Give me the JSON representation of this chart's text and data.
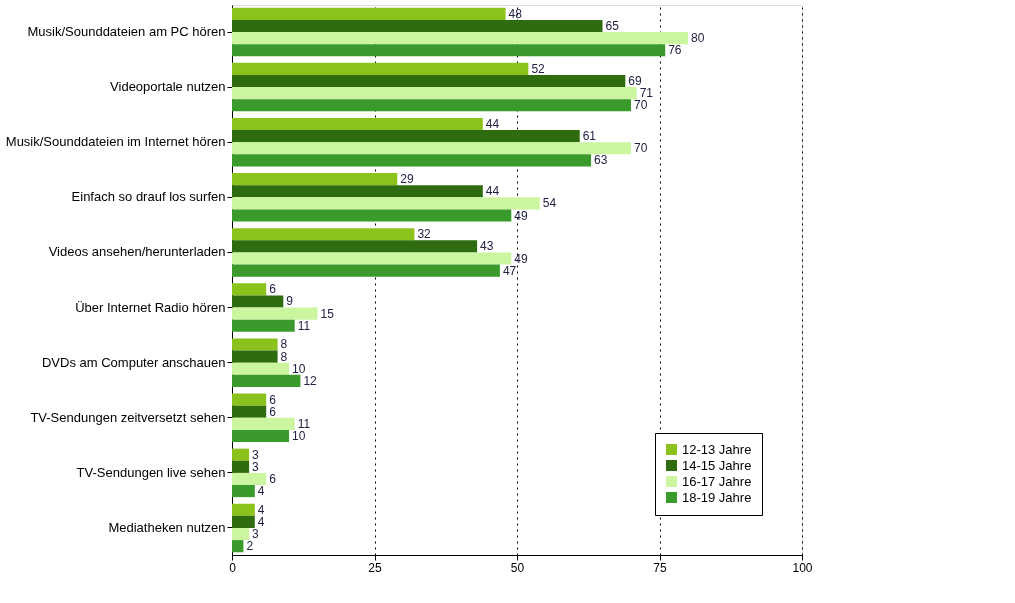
{
  "chart_data": {
    "type": "bar",
    "orientation": "horizontal",
    "categories": [
      "Musik/Sounddateien am PC hören",
      "Videoportale nutzen",
      "Musik/Sounddateien im Internet hören",
      "Einfach so drauf los surfen",
      "Videos ansehen/herunterladen",
      "Über Internet Radio hören",
      "DVDs am Computer anschauen",
      "TV-Sendungen zeitversetzt sehen",
      "TV-Sendungen live sehen",
      "Mediatheken nutzen"
    ],
    "series": [
      {
        "name": "12-13 Jahre",
        "color": "#8cc21c",
        "values": [
          48,
          52,
          44,
          29,
          32,
          6,
          8,
          6,
          3,
          4
        ]
      },
      {
        "name": "14-15 Jahre",
        "color": "#2f6b0f",
        "values": [
          65,
          69,
          61,
          44,
          43,
          9,
          8,
          6,
          3,
          4
        ]
      },
      {
        "name": "16-17 Jahre",
        "color": "#ccf5a0",
        "values": [
          80,
          71,
          70,
          54,
          49,
          15,
          10,
          11,
          6,
          3
        ]
      },
      {
        "name": "18-19 Jahre",
        "color": "#3a9a2c",
        "values": [
          76,
          70,
          63,
          49,
          47,
          11,
          12,
          10,
          4,
          2
        ]
      }
    ],
    "xlim": [
      0,
      100
    ],
    "xticks": [
      0,
      25,
      50,
      75,
      100
    ],
    "grid": "x",
    "legend": "bottom right",
    "data_labels": true
  }
}
